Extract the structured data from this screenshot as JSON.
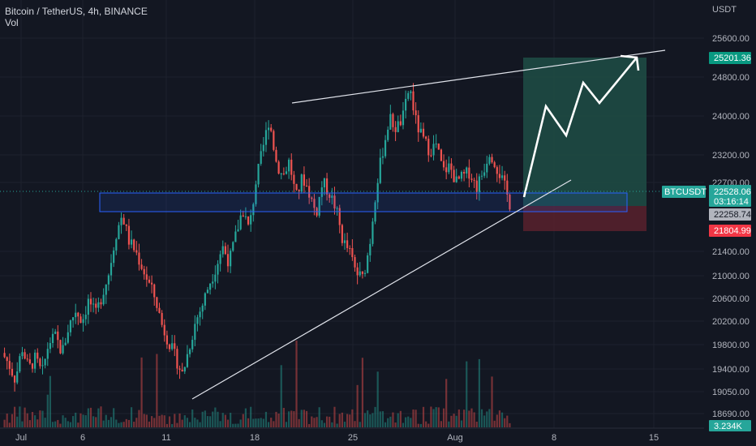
{
  "legend": {
    "symbol_line": "Bitcoin / TetherUS, 4h, BINANCE",
    "volume_label": "Vol"
  },
  "price_axis": {
    "currency": "USDT",
    "ticks": [
      "25600.00",
      "24800.00",
      "24000.00",
      "23200.00",
      "22700.00",
      "21400.00",
      "21000.00",
      "20600.00",
      "20200.00",
      "19800.00",
      "19400.00",
      "19050.00",
      "18690.00"
    ]
  },
  "time_axis": {
    "ticks": [
      "Jul",
      "6",
      "11",
      "18",
      "25",
      "Aug",
      "8",
      "15"
    ]
  },
  "price_tags": {
    "target": "25201.36",
    "symbol": "BTCUSDT",
    "last": "22528.06",
    "countdown": "03:16:14",
    "entry": "22258.74",
    "stop": "21804.99",
    "volume": "3.234K"
  },
  "colors": {
    "background": "#131722",
    "up": "#26a69a",
    "down": "#ef5350",
    "zone_border": "#2962ff",
    "profit_zone": "#1f4a44",
    "loss_zone": "#5a2431",
    "trendline": "#e0e3eb"
  },
  "chart_data": {
    "type": "candlestick",
    "title": "Bitcoin / TetherUS, 4h, BINANCE",
    "x_axis": [
      "Jul",
      "6",
      "11",
      "18",
      "25",
      "Aug",
      "8",
      "15"
    ],
    "y_range": [
      18500,
      26100
    ],
    "key_levels": {
      "target": 25201.36,
      "last_price": 22528.06,
      "entry": 22258.74,
      "stop": 21804.99
    },
    "path_points": [
      [
        19700,
        19500,
        19200,
        19800,
        19400,
        19600,
        19300,
        19900,
        20000,
        19700,
        20200,
        20500,
        20300,
        20700,
        20400,
        20800,
        21200,
        21900,
        22300,
        21800,
        21600,
        21300,
        21000,
        20700,
        20200,
        19900,
        19600,
        19300,
        19800,
        20300,
        20600,
        21000,
        21300,
        21700,
        21400,
        21900,
        22400,
        22000,
        22900,
        23500,
        24100,
        23300,
        23000,
        23300,
        22600,
        23000,
        22700,
        22300,
        22900,
        22700,
        22400,
        21800,
        21600,
        21200,
        21100,
        21700,
        22800,
        23500,
        24100,
        23900,
        24100,
        24700,
        24000,
        23700,
        23500,
        23600,
        23100,
        23200,
        22900,
        23000,
        23100,
        22800,
        23100,
        23500,
        23200,
        22900,
        22500
      ]
    ]
  }
}
